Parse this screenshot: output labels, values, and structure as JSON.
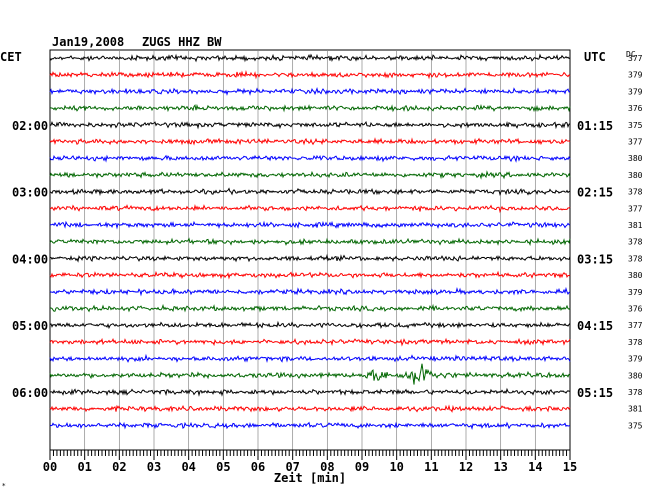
{
  "header": {
    "date": "Jan19,2008",
    "station": "ZUGS HHZ BW",
    "left_tz": "CET",
    "right_tz": "UTC",
    "dc_label": "DC"
  },
  "chart_data": {
    "type": "line",
    "title": "Jan19,2008   ZUGS HHZ BW",
    "xlabel": "Zeit [min]",
    "xlim": [
      0,
      15
    ],
    "x_ticks": [
      "00",
      "01",
      "02",
      "03",
      "04",
      "05",
      "06",
      "07",
      "08",
      "09",
      "10",
      "11",
      "12",
      "13",
      "14",
      "15"
    ],
    "traces_per_hour": 4,
    "trace_colors": [
      "#000000",
      "#ff0000",
      "#0000ff",
      "#006600"
    ],
    "left_hour_labels": [
      {
        "trace": 4,
        "label": "02:00"
      },
      {
        "trace": 8,
        "label": "03:00"
      },
      {
        "trace": 12,
        "label": "04:00"
      },
      {
        "trace": 16,
        "label": "05:00"
      },
      {
        "trace": 20,
        "label": "06:00"
      }
    ],
    "right_hour_labels": [
      {
        "trace": 4,
        "label": "01:15"
      },
      {
        "trace": 8,
        "label": "02:15"
      },
      {
        "trace": 12,
        "label": "03:15"
      },
      {
        "trace": 16,
        "label": "04:15"
      },
      {
        "trace": 20,
        "label": "05:15"
      }
    ],
    "dc_offsets": [
      377,
      379,
      379,
      376,
      375,
      377,
      380,
      380,
      378,
      377,
      381,
      378,
      378,
      380,
      379,
      376,
      377,
      378,
      379,
      380,
      378,
      381,
      375
    ],
    "events": [
      {
        "trace": 19,
        "start_min": 9.0,
        "end_min": 12.0,
        "peak_min": 10.6
      }
    ]
  }
}
